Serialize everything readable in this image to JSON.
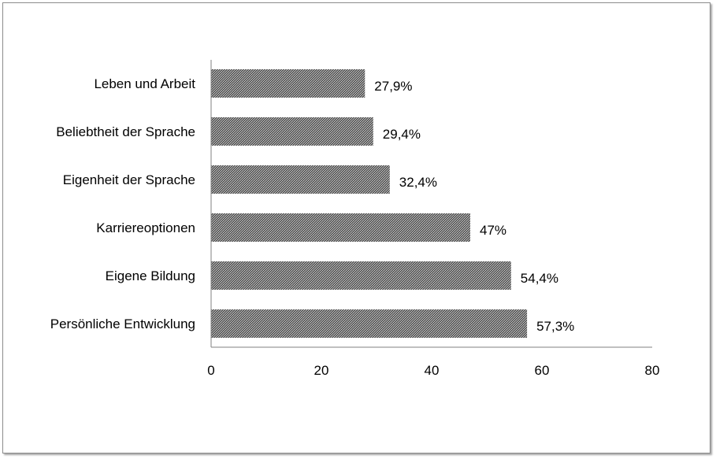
{
  "chart_data": {
    "type": "bar",
    "orientation": "horizontal",
    "categories": [
      "Leben und Arbeit",
      "Beliebtheit der Sprache",
      "Eigenheit der Sprache",
      "Karriereoptionen",
      "Eigene Bildung",
      "Persönliche Entwicklung"
    ],
    "values": [
      27.9,
      29.4,
      32.4,
      47,
      54.4,
      57.3
    ],
    "data_labels": [
      "27,9%",
      "29,4%",
      "32,4%",
      "47%",
      "54,4%",
      "57,3%"
    ],
    "xlim": [
      0,
      80
    ],
    "x_ticks": [
      0,
      20,
      40,
      60,
      80
    ],
    "x_tick_labels": [
      "0",
      "20",
      "40",
      "60",
      "80"
    ],
    "grid": false,
    "legend": "none",
    "bar_fill": "#4a4a4a",
    "bar_pattern_light": "#bdbdbd",
    "axis_color": "#808080"
  }
}
